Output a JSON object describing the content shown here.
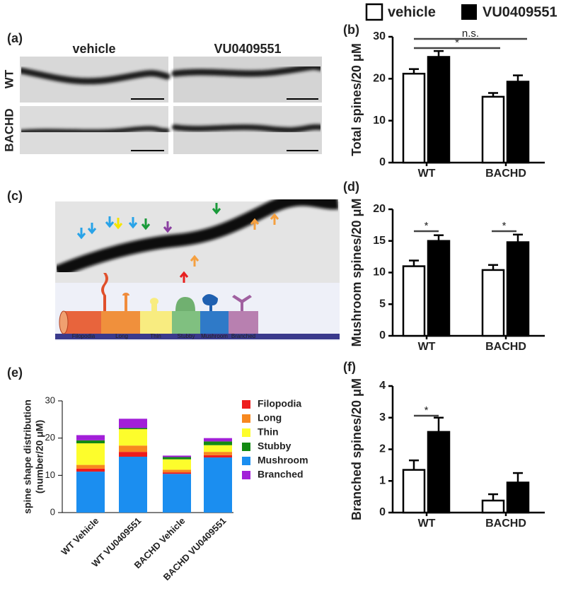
{
  "legend": {
    "items": [
      "vehicle",
      "VU0409551"
    ]
  },
  "panel_a": {
    "label": "(a)",
    "columns": [
      "vehicle",
      "VU0409551"
    ],
    "rows": [
      "WT",
      "BACHD"
    ]
  },
  "panel_c": {
    "label": "(c)",
    "shapes": [
      "Filopodia",
      "Long",
      "Thin",
      "Stubby",
      "Mushroom",
      "Branched"
    ]
  },
  "chart_data": [
    {
      "type": "bar",
      "label": "(b)",
      "y_label": "Total spines/20 μM",
      "categories": [
        "WT",
        "BACHD"
      ],
      "series": [
        {
          "name": "vehicle",
          "color": "#ffffff",
          "values": [
            21.2,
            15.7
          ],
          "errors": [
            1.1,
            0.9
          ]
        },
        {
          "name": "VU0409551",
          "color": "#000000",
          "values": [
            25.2,
            19.3
          ],
          "errors": [
            1.4,
            1.5
          ]
        }
      ],
      "ylim": [
        0,
        30
      ],
      "yticks": [
        0,
        10,
        20,
        30
      ],
      "annotations": [
        "*",
        "n.s."
      ]
    },
    {
      "type": "bar",
      "label": "(d)",
      "y_label": "Mushroom spines/20 μM",
      "categories": [
        "WT",
        "BACHD"
      ],
      "series": [
        {
          "name": "vehicle",
          "color": "#ffffff",
          "values": [
            11.0,
            10.4
          ],
          "errors": [
            0.9,
            0.8
          ]
        },
        {
          "name": "VU0409551",
          "color": "#000000",
          "values": [
            15.0,
            14.8
          ],
          "errors": [
            0.9,
            1.2
          ]
        }
      ],
      "ylim": [
        0,
        20
      ],
      "yticks": [
        0,
        5,
        10,
        15,
        20
      ],
      "annotations": [
        "*",
        "*"
      ]
    },
    {
      "type": "bar",
      "label": "(f)",
      "y_label": "Branched spines/20 μM",
      "categories": [
        "WT",
        "BACHD"
      ],
      "series": [
        {
          "name": "vehicle",
          "color": "#ffffff",
          "values": [
            1.35,
            0.38
          ],
          "errors": [
            0.3,
            0.2
          ]
        },
        {
          "name": "VU0409551",
          "color": "#000000",
          "values": [
            2.55,
            0.95
          ],
          "errors": [
            0.45,
            0.3
          ]
        }
      ],
      "ylim": [
        0,
        4
      ],
      "yticks": [
        0,
        1,
        2,
        3,
        4
      ],
      "annotations": [
        "*"
      ]
    },
    {
      "type": "stacked_bar",
      "label": "(e)",
      "y_label": [
        "spine shape distribution",
        "(number/20 μM)"
      ],
      "categories": [
        "WT Vehicle",
        "WT VU0409551",
        "BACHD Vehicle",
        "BACHD VU0409551"
      ],
      "series": [
        {
          "name": "Filopodia",
          "color": "#ee1c1c",
          "values": [
            0.8,
            1.3,
            0.4,
            0.6
          ]
        },
        {
          "name": "Long",
          "color": "#f7881f",
          "values": [
            1.0,
            1.7,
            0.7,
            0.9
          ]
        },
        {
          "name": "Thin",
          "color": "#fdfd2c",
          "values": [
            5.8,
            4.4,
            2.8,
            1.8
          ]
        },
        {
          "name": "Stubby",
          "color": "#138a13",
          "values": [
            0.8,
            0.3,
            0.6,
            1.0
          ]
        },
        {
          "name": "Mushroom",
          "color": "#1b8ef0",
          "values": [
            11.0,
            15.0,
            10.4,
            14.8
          ]
        },
        {
          "name": "Branched",
          "color": "#a21fd8",
          "values": [
            1.4,
            2.5,
            0.4,
            0.9
          ]
        }
      ],
      "stack_order": [
        4,
        0,
        1,
        2,
        3,
        5
      ],
      "ylim": [
        0,
        30
      ],
      "yticks": [
        0,
        10,
        20,
        30
      ]
    }
  ]
}
